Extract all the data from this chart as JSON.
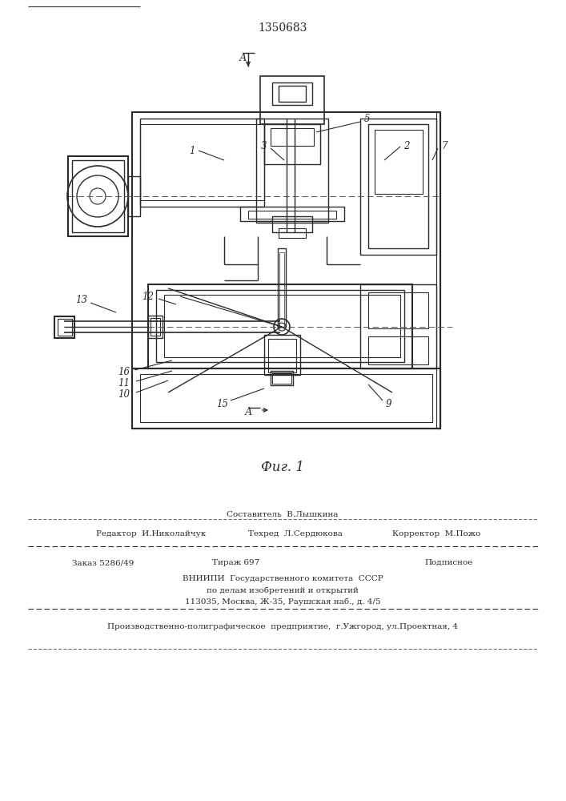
{
  "patent_number": "1350683",
  "fig_caption": "Фиг. 1",
  "bg_color": "#ffffff",
  "line_color": "#2a2a2a",
  "footer": {
    "sostavitel": "Составитель  В.Лышкина",
    "redaktor": "Редактор  И.Николайчук",
    "tehred": "Техред  Л.Сердюкова",
    "korrektor": "Корректор  М.Пожо",
    "zakaz": "Заказ 5286/49",
    "tirazh": "Тираж 697",
    "podpisnoe": "Подписное",
    "vniipи": "ВНИИПИ  Государственного комитета  СССР",
    "po_delam": "по делам изобретений и открытий",
    "address": "113035, Москва, Ж-35, Раушская наб., д. 4/5",
    "factory": "Производственно-полиграфическое  предприятие,  г.Ужгород, ул.Проектная, 4"
  }
}
